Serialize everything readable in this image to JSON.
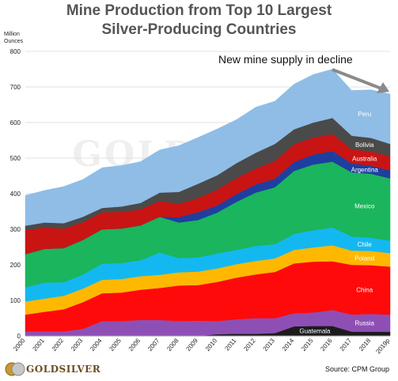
{
  "chart_data": {
    "type": "area",
    "stacked": true,
    "title": [
      "Mine Production from Top 10 Largest",
      "Silver-Producing  Countries"
    ],
    "ylabel": [
      "Million",
      "Ounces"
    ],
    "ylim": [
      0,
      800
    ],
    "yticks": [
      "0",
      "100",
      "200",
      "300",
      "400",
      "500",
      "600",
      "700",
      "800"
    ],
    "categories": [
      "2000",
      "2001",
      "2002",
      "2003",
      "2004",
      "2005",
      "2006",
      "2007",
      "2008",
      "2009",
      "2010",
      "2011",
      "2012",
      "2013",
      "2014",
      "2015",
      "2016",
      "2017",
      "2018",
      "2019p"
    ],
    "series": [
      {
        "name": "Guatemala",
        "color": "#1c1c1c",
        "values": [
          0,
          0,
          0,
          0,
          0,
          0,
          0,
          0,
          0,
          0,
          5,
          6,
          6,
          8,
          27,
          28,
          28,
          12,
          12,
          12
        ]
      },
      {
        "name": "Russia",
        "color": "#8e4fb5",
        "values": [
          13,
          13,
          13,
          20,
          42,
          42,
          45,
          45,
          42,
          43,
          37,
          41,
          44,
          42,
          37,
          38,
          45,
          48,
          50,
          48
        ]
      },
      {
        "name": "China",
        "color": "#ff0a0a",
        "values": [
          47,
          55,
          62,
          75,
          78,
          80,
          85,
          90,
          100,
          100,
          110,
          117,
          123,
          130,
          140,
          143,
          137,
          140,
          137,
          135
        ]
      },
      {
        "name": "Poland",
        "color": "#ffb800",
        "values": [
          37,
          37,
          38,
          38,
          38,
          38,
          38,
          37,
          37,
          38,
          38,
          38,
          38,
          38,
          38,
          40,
          45,
          40,
          40,
          38
        ]
      },
      {
        "name": "Chile",
        "color": "#14b8f0",
        "values": [
          40,
          45,
          38,
          40,
          45,
          45,
          45,
          63,
          40,
          40,
          42,
          40,
          42,
          40,
          45,
          48,
          50,
          40,
          37,
          35
        ]
      },
      {
        "name": "Mexico",
        "color": "#1ab55c",
        "values": [
          93,
          95,
          96,
          97,
          97,
          97,
          98,
          100,
          100,
          105,
          115,
          135,
          150,
          160,
          177,
          185,
          185,
          180,
          180,
          175
        ]
      },
      {
        "name": "Argentina",
        "color": "#1e3fa0",
        "values": [
          0,
          0,
          0,
          0,
          0,
          0,
          0,
          0,
          15,
          22,
          20,
          22,
          23,
          24,
          25,
          28,
          30,
          25,
          23,
          22
        ]
      },
      {
        "name": "Australia",
        "color": "#c91414",
        "values": [
          68,
          60,
          55,
          50,
          48,
          47,
          45,
          45,
          38,
          40,
          45,
          45,
          45,
          50,
          50,
          48,
          48,
          40,
          40,
          40
        ]
      },
      {
        "name": "Bolivia",
        "color": "#4a4a4a",
        "values": [
          12,
          14,
          15,
          15,
          12,
          15,
          18,
          23,
          33,
          40,
          40,
          42,
          44,
          48,
          42,
          42,
          45,
          38,
          38,
          35
        ]
      },
      {
        "name": "Peru",
        "color": "#8fbde6",
        "values": [
          85,
          90,
          103,
          105,
          113,
          115,
          116,
          120,
          130,
          130,
          130,
          122,
          128,
          120,
          127,
          135,
          137,
          127,
          135,
          140
        ]
      }
    ],
    "annotation": "New mine supply in decline",
    "watermark": "GOLDSILVER",
    "grid": true
  },
  "footer": {
    "logo": "GOLDSILVER",
    "source": "Source: CPM Group"
  }
}
